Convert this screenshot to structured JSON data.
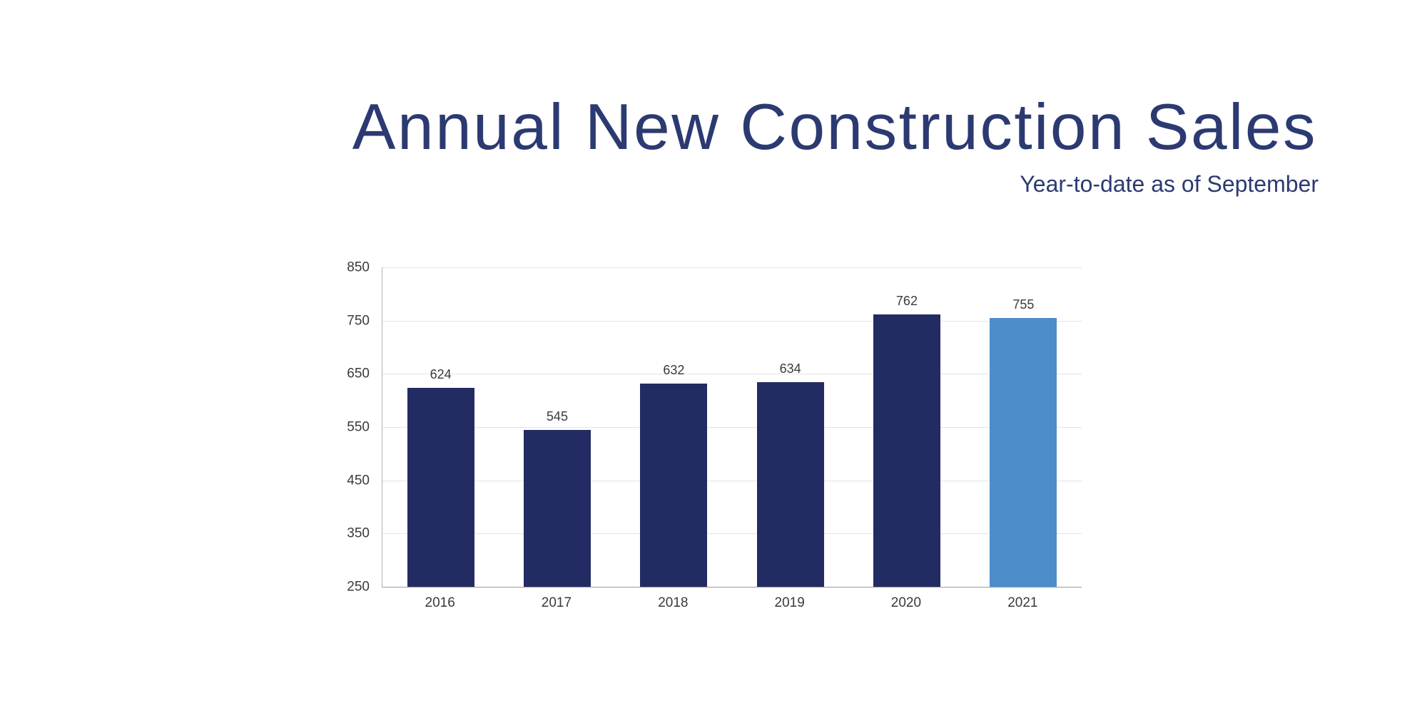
{
  "chart_data": {
    "type": "bar",
    "title": "Annual New Construction Sales",
    "subtitle": "Year-to-date as of September",
    "categories": [
      "2016",
      "2017",
      "2018",
      "2019",
      "2020",
      "2021"
    ],
    "values": [
      624,
      545,
      632,
      634,
      762,
      755
    ],
    "bar_colors": [
      "#222c62",
      "#222c62",
      "#222c62",
      "#222c62",
      "#222c62",
      "#4d8dc9"
    ],
    "highlighted_category": "2021",
    "value_labels_shown": true,
    "xlabel": "",
    "ylabel": "",
    "ylim": [
      250,
      850
    ],
    "yticks": [
      250,
      350,
      450,
      550,
      650,
      750,
      850
    ],
    "grid": "horizontal",
    "legend": "none",
    "colors": {
      "title_text": "#2c3a72",
      "bar_primary": "#222c62",
      "bar_highlight": "#4d8dc9",
      "gridline": "#e4e4e8",
      "axis_line": "#a3a3a3",
      "tick_label": "#3a3a3a"
    }
  }
}
